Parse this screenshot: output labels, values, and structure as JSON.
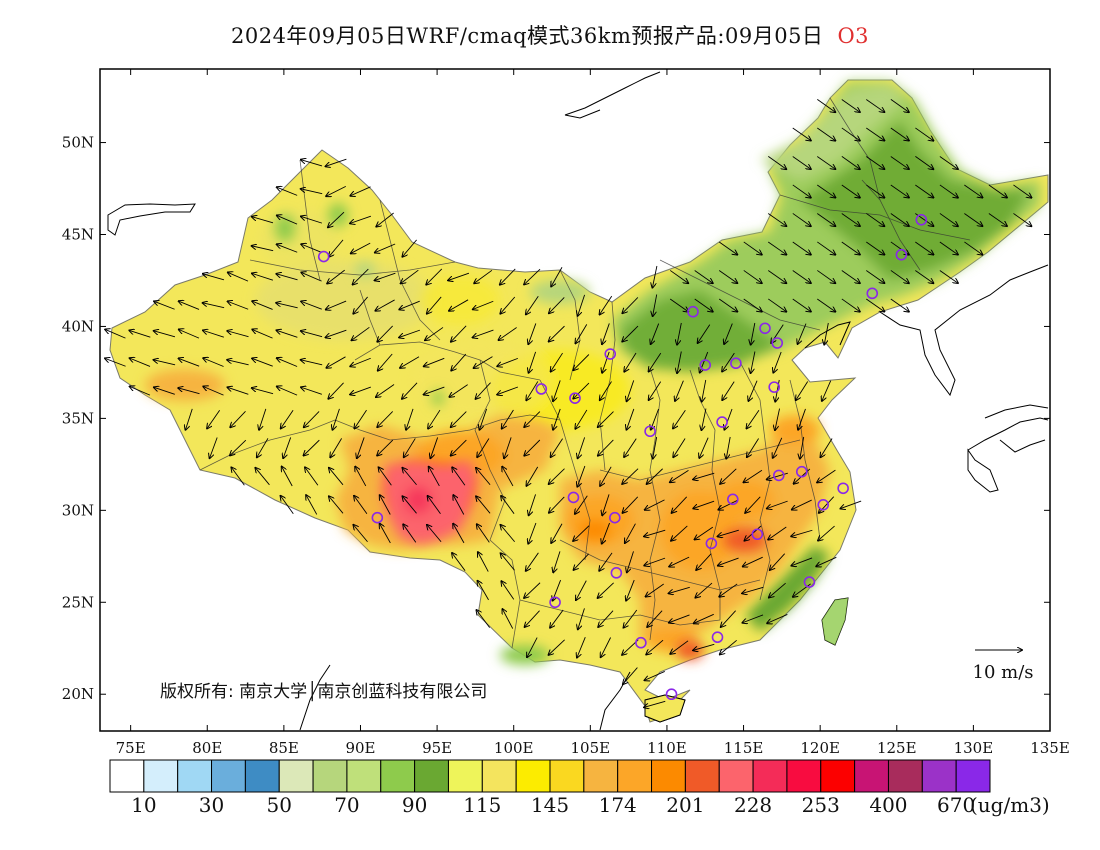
{
  "title": {
    "text": "2024年09月05日WRF/cmaq模式36km预报产品:09月05日",
    "variable": "O3"
  },
  "map": {
    "lon_range": [
      73,
      135
    ],
    "lat_range": [
      18,
      54
    ],
    "lon_ticks": [
      {
        "value": 75,
        "label": "75E"
      },
      {
        "value": 80,
        "label": "80E"
      },
      {
        "value": 85,
        "label": "85E"
      },
      {
        "value": 90,
        "label": "90E"
      },
      {
        "value": 95,
        "label": "95E"
      },
      {
        "value": 100,
        "label": "100E"
      },
      {
        "value": 105,
        "label": "105E"
      },
      {
        "value": 110,
        "label": "110E"
      },
      {
        "value": 115,
        "label": "115E"
      },
      {
        "value": 120,
        "label": "120E"
      },
      {
        "value": 125,
        "label": "125E"
      },
      {
        "value": 130,
        "label": "130E"
      },
      {
        "value": 135,
        "label": "135E"
      }
    ],
    "lat_ticks": [
      {
        "value": 20,
        "label": "20N"
      },
      {
        "value": 25,
        "label": "25N"
      },
      {
        "value": 30,
        "label": "30N"
      },
      {
        "value": 35,
        "label": "35N"
      },
      {
        "value": 40,
        "label": "40N"
      },
      {
        "value": 45,
        "label": "45N"
      },
      {
        "value": 50,
        "label": "50N"
      }
    ],
    "wind_reference": {
      "label": "10 m/s"
    },
    "copyright": "版权所有: 南京大学│南京创蓝科技有限公司",
    "stations": [
      [
        87.6,
        43.8
      ],
      [
        91.1,
        29.6
      ],
      [
        101.8,
        36.6
      ],
      [
        104.0,
        36.1
      ],
      [
        106.3,
        38.5
      ],
      [
        103.9,
        30.7
      ],
      [
        106.6,
        29.6
      ],
      [
        106.7,
        26.6
      ],
      [
        102.7,
        25.0
      ],
      [
        108.3,
        22.8
      ],
      [
        113.3,
        23.1
      ],
      [
        110.3,
        20.0
      ],
      [
        108.9,
        34.3
      ],
      [
        111.7,
        40.8
      ],
      [
        112.5,
        37.9
      ],
      [
        114.5,
        38.0
      ],
      [
        116.4,
        39.9
      ],
      [
        117.2,
        39.1
      ],
      [
        117.0,
        36.7
      ],
      [
        113.6,
        34.8
      ],
      [
        114.3,
        30.6
      ],
      [
        112.9,
        28.2
      ],
      [
        115.9,
        28.7
      ],
      [
        117.3,
        31.9
      ],
      [
        118.8,
        32.1
      ],
      [
        120.2,
        30.3
      ],
      [
        121.5,
        31.2
      ],
      [
        119.3,
        26.1
      ],
      [
        123.4,
        41.8
      ],
      [
        125.3,
        43.9
      ],
      [
        126.6,
        45.8
      ]
    ]
  },
  "colorbar": {
    "colors": [
      "#ffffff",
      "#d4eefc",
      "#a0d8f4",
      "#6aaedc",
      "#3e8cc4",
      "#dce8b8",
      "#b6d67c",
      "#bfe07a",
      "#8ecb4c",
      "#6aa832",
      "#eef45a",
      "#f4e45e",
      "#fcec00",
      "#fad820",
      "#f6b440",
      "#fca628",
      "#fc8a00",
      "#f05a28",
      "#fc646c",
      "#f42c58",
      "#f80c40",
      "#fc0000",
      "#c81474",
      "#a82c5c",
      "#9b32c8",
      "#8a28e8"
    ],
    "labels": [
      "10",
      "30",
      "50",
      "70",
      "90",
      "115",
      "145",
      "174",
      "201",
      "228",
      "253",
      "400",
      "670"
    ],
    "unit": "(ug/m3)"
  }
}
